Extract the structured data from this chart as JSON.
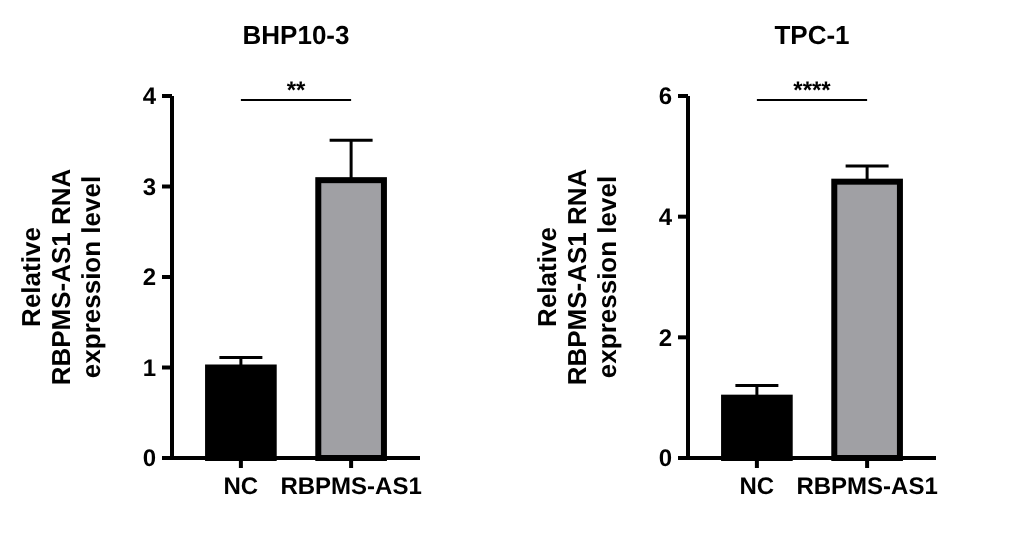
{
  "chart_data": [
    {
      "type": "bar",
      "title": "BHP10-3",
      "ylabel": "Relative\nRBPMS-AS1 RNA\nexpression level",
      "categories": [
        "NC",
        "RBPMS-AS1"
      ],
      "values": [
        1.0,
        3.07
      ],
      "colors": [
        "#000000",
        "#a0a0a4"
      ],
      "errors": [
        [
          1.0,
          1.11
        ],
        [
          3.07,
          3.51
        ]
      ],
      "ylim": [
        0,
        4
      ],
      "yticks": [
        0,
        1,
        2,
        3,
        4
      ],
      "grid": false,
      "annotations": [
        "**"
      ]
    },
    {
      "type": "bar",
      "title": "TPC-1",
      "ylabel": "Relative\nRBPMS-AS1 RNA\nexpression level",
      "categories": [
        "NC",
        "RBPMS-AS1"
      ],
      "values": [
        1.0,
        4.58
      ],
      "colors": [
        "#000000",
        "#a0a0a4"
      ],
      "errors": [
        [
          1.0,
          1.2
        ],
        [
          4.58,
          4.84
        ]
      ],
      "ylim": [
        0,
        6
      ],
      "yticks": [
        0,
        2,
        4,
        6
      ],
      "grid": false,
      "annotations": [
        "****"
      ]
    }
  ]
}
